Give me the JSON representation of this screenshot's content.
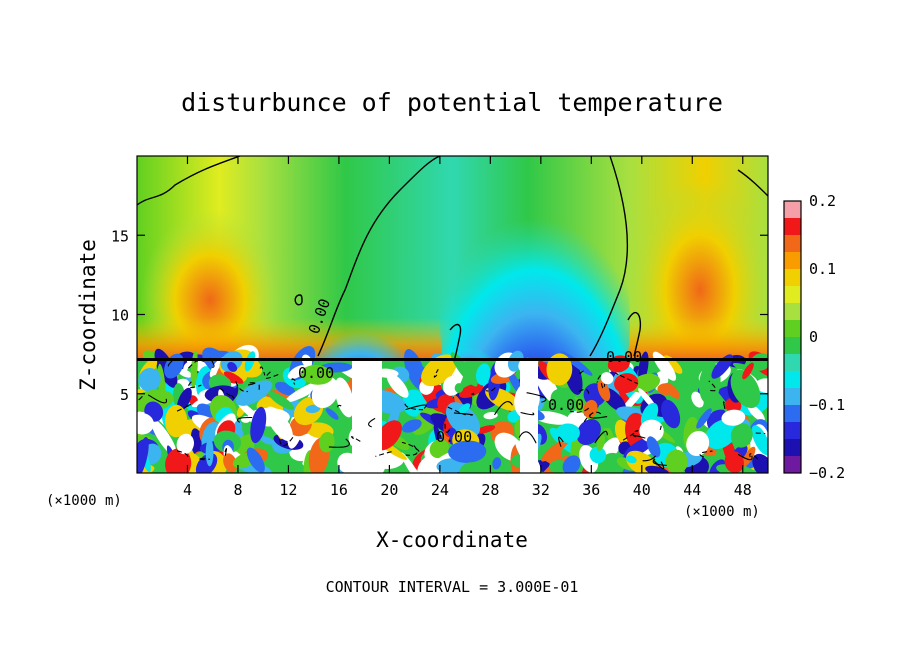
{
  "chart_data": {
    "type": "heatmap",
    "title": "disturbunce of potential temperature",
    "xlabel": "X-coordinate",
    "ylabel": "Z-coordinate",
    "x_unit": "(×1000 m)",
    "x_unit_right": "(×1000 m)",
    "footer": "CONTOUR INTERVAL = 3.000E-01",
    "xlim": [
      0,
      50
    ],
    "ylim": [
      0,
      20
    ],
    "xticks": [
      4,
      8,
      12,
      16,
      20,
      24,
      28,
      32,
      36,
      40,
      44,
      48
    ],
    "yticks": [
      5,
      10,
      15
    ],
    "colorbar": {
      "range": [
        -0.2,
        0.2
      ],
      "tick_labels": [
        "0.2",
        "0.1",
        "0",
        "−0.1",
        "−0.2"
      ],
      "tick_values": [
        0.2,
        0.1,
        0,
        -0.1,
        -0.2
      ],
      "colors": [
        "#f5a0a8",
        "#f01818",
        "#f06818",
        "#f89c00",
        "#f0d000",
        "#e0ec20",
        "#a8e040",
        "#60d020",
        "#30c848",
        "#30d8b0",
        "#00e8ec",
        "#3cb4f0",
        "#2c6cf0",
        "#2828dc",
        "#1c10b0",
        "#6e1aa0"
      ]
    },
    "contour_labels": [
      "0.00",
      "0.00",
      "0.00",
      "0.00",
      "0.00"
    ]
  }
}
